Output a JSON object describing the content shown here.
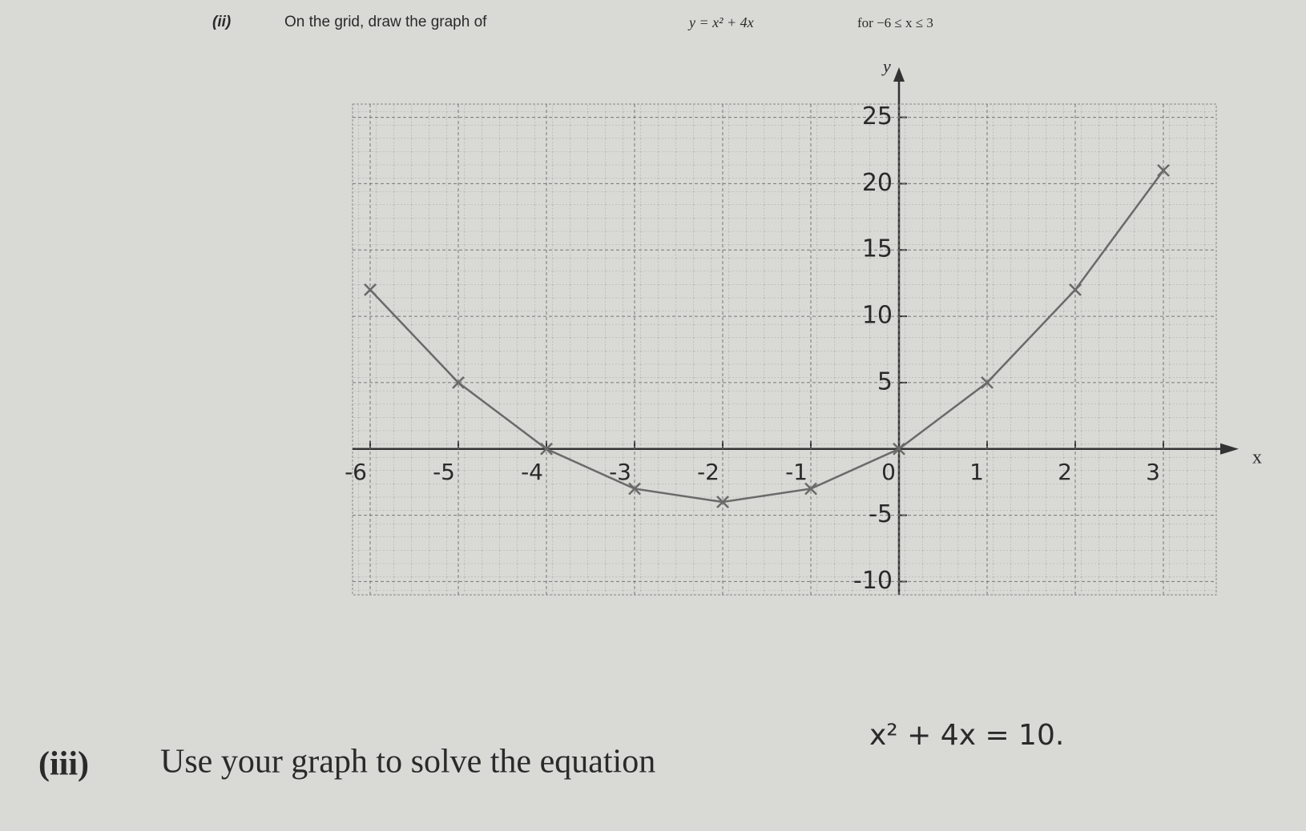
{
  "question_ii": {
    "number": "(ii)",
    "text": "On the grid, draw the graph of",
    "equation": "y = x² + 4x",
    "range": "for −6 ≤ x ≤ 3"
  },
  "chart_data": {
    "type": "line",
    "x_label": "x",
    "y_label": "y",
    "x": [
      -6,
      -5,
      -4,
      -3,
      -2,
      -1,
      0,
      1,
      2,
      3
    ],
    "series": [
      {
        "color": "#6a6a6a",
        "values": [
          12,
          5,
          0,
          -3,
          -4,
          -3,
          0,
          5,
          12,
          21
        ]
      }
    ],
    "xlim": [
      -6.2,
      3.6
    ],
    "ylim": [
      -11,
      26
    ],
    "xticks": [
      -6,
      -5,
      -4,
      -3,
      -2,
      -1,
      0,
      1,
      2,
      3
    ],
    "yticks": [
      -10,
      -5,
      5,
      10,
      15,
      20,
      25
    ]
  },
  "question_iii": {
    "number": "(iii)",
    "text": "Use your graph to solve the equation",
    "equation": "x² + 4x = 10."
  }
}
